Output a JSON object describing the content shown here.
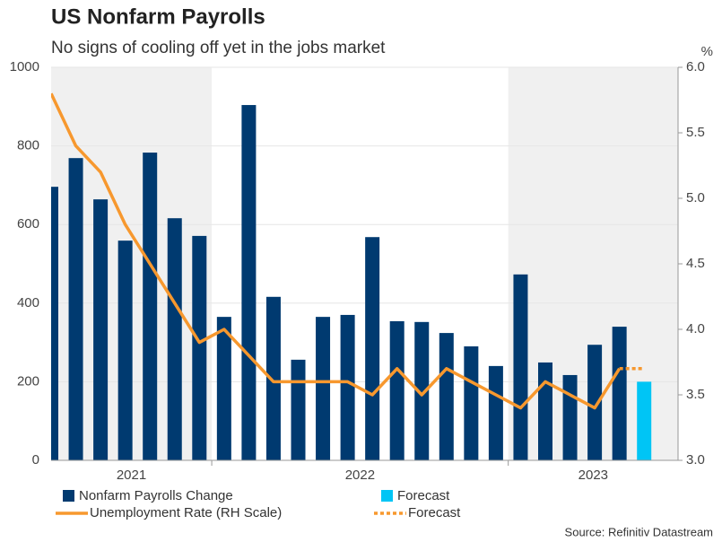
{
  "chart_data": {
    "type": "bar",
    "title": "US Nonfarm Payrolls",
    "subtitle": "No signs of cooling off yet in the jobs market",
    "y2_unit": "%",
    "source": "Source: Refinitiv Datastream",
    "categories": [
      null,
      null,
      null,
      null,
      null,
      null,
      null,
      null,
      null,
      null,
      null,
      null,
      null,
      null,
      null,
      null,
      null,
      null,
      null,
      null,
      null,
      null,
      null,
      null,
      null
    ],
    "periods": [
      {
        "label": "2021",
        "months": 7,
        "shaded": true
      },
      {
        "label": "2022",
        "months": 12,
        "shaded": false
      },
      {
        "label": "2023",
        "months": 6,
        "shaded": true
      }
    ],
    "ylim": [
      0,
      1000
    ],
    "yticks": [
      0,
      200,
      400,
      600,
      800,
      1000
    ],
    "y2lim": [
      3.0,
      6.0
    ],
    "y2ticks": [
      {
        "value": 3,
        "label": "3.0"
      },
      {
        "value": 3.5,
        "label": "3.5"
      },
      {
        "value": 4,
        "label": "4.0"
      },
      {
        "value": 4.5,
        "label": "4.5"
      },
      {
        "value": 5,
        "label": "5.0"
      },
      {
        "value": 5.5,
        "label": "5.5"
      },
      {
        "value": 6,
        "label": "6.0"
      }
    ],
    "grid": true,
    "series": [
      {
        "name": "Nonfarm Payrolls Change",
        "type": "bar",
        "color": "#003a70",
        "values": [
          696,
          769,
          664,
          559,
          783,
          616,
          571,
          365,
          904,
          416,
          256,
          365,
          370,
          568,
          354,
          352,
          324,
          290,
          240,
          473,
          249,
          217,
          294,
          340,
          null
        ]
      },
      {
        "name": "Forecast",
        "type": "bar",
        "color": "#00c5f5",
        "values": [
          null,
          null,
          null,
          null,
          null,
          null,
          null,
          null,
          null,
          null,
          null,
          null,
          null,
          null,
          null,
          null,
          null,
          null,
          null,
          null,
          null,
          null,
          null,
          null,
          200
        ]
      },
      {
        "name": "Unemployment Rate (RH Scale)",
        "type": "line",
        "axis": "y2",
        "color": "#f7982e",
        "dashed": false,
        "values": [
          5.8,
          5.4,
          5.2,
          4.8,
          4.5,
          4.2,
          3.9,
          4.0,
          3.8,
          3.6,
          3.6,
          3.6,
          3.6,
          3.5,
          3.7,
          3.5,
          3.7,
          3.6,
          3.5,
          3.4,
          3.6,
          3.5,
          3.4,
          3.7,
          null
        ]
      },
      {
        "name": "Forecast",
        "type": "line",
        "axis": "y2",
        "color": "#f7982e",
        "dashed": true,
        "values": [
          null,
          null,
          null,
          null,
          null,
          null,
          null,
          null,
          null,
          null,
          null,
          null,
          null,
          null,
          null,
          null,
          null,
          null,
          null,
          null,
          null,
          null,
          null,
          3.7,
          3.7
        ]
      }
    ]
  }
}
